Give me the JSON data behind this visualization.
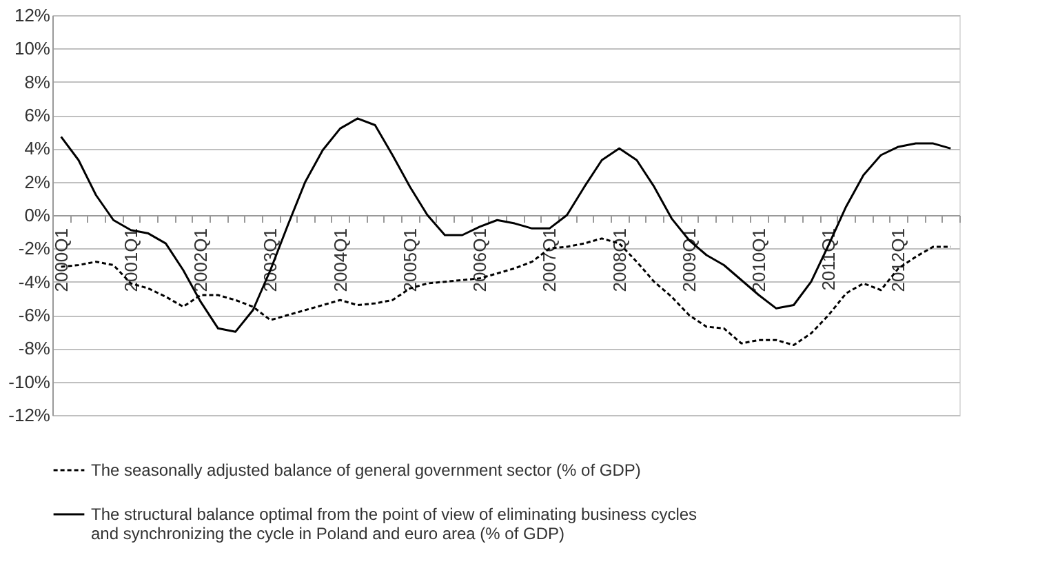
{
  "chart_data": {
    "type": "line",
    "categories": [
      "2000Q1",
      null,
      null,
      null,
      "2001Q1",
      null,
      null,
      null,
      "2002Q1",
      null,
      null,
      null,
      "2003Q1",
      null,
      null,
      null,
      "2004Q1",
      null,
      null,
      null,
      "2005Q1",
      null,
      null,
      null,
      "2006Q1",
      null,
      null,
      null,
      "2007Q1",
      null,
      null,
      null,
      "2008Q1",
      null,
      null,
      null,
      "2009Q1",
      null,
      null,
      null,
      "2010Q1",
      null,
      null,
      null,
      "2011Q1",
      null,
      null,
      null,
      "2012Q1",
      null,
      null,
      null
    ],
    "series": [
      {
        "name": "The seasonally adjusted balance of general government sector (% of GDP)",
        "color": "#000000",
        "line_style": "dashed",
        "values": [
          -3.1,
          -3.0,
          -2.8,
          -3.0,
          -4.1,
          -4.4,
          -4.9,
          -5.5,
          -4.8,
          -4.8,
          -5.1,
          -5.5,
          -6.3,
          -6.0,
          -5.7,
          -5.4,
          -5.1,
          -5.4,
          -5.3,
          -5.1,
          -4.4,
          -4.1,
          -4.0,
          -3.9,
          -3.8,
          -3.5,
          -3.2,
          -2.8,
          -2.0,
          -1.9,
          -1.7,
          -1.4,
          -1.7,
          -2.8,
          -4.0,
          -4.9,
          -6.0,
          -6.7,
          -6.8,
          -7.7,
          -7.5,
          -7.5,
          -7.8,
          -7.1,
          -6.0,
          -4.7,
          -4.1,
          -4.5,
          -3.2,
          -2.5,
          -1.9,
          -1.9
        ]
      },
      {
        "name": "The structural balance optimal from the point of view of eliminating business cycles and synchronizing the cycle in Poland and euro area (% of GDP)",
        "color": "#000000",
        "line_style": "solid",
        "values": [
          4.7,
          3.3,
          1.2,
          -0.3,
          -0.9,
          -1.1,
          -1.7,
          -3.3,
          -5.2,
          -6.8,
          -7.0,
          -5.7,
          -3.3,
          -0.6,
          2.0,
          3.9,
          5.2,
          5.8,
          5.4,
          3.6,
          1.7,
          0.0,
          -1.2,
          -1.2,
          -0.7,
          -0.3,
          -0.5,
          -0.8,
          -0.8,
          0.0,
          1.7,
          3.3,
          4.0,
          3.3,
          1.7,
          -0.2,
          -1.5,
          -2.4,
          -3.0,
          -3.9,
          -4.8,
          -5.6,
          -5.4,
          -4.0,
          -1.8,
          0.5,
          2.4,
          3.6,
          4.1,
          4.3,
          4.3,
          4.0
        ]
      }
    ],
    "ylim": [
      -12,
      12
    ],
    "yticks": [
      {
        "value": -12,
        "label": "-12%"
      },
      {
        "value": -10,
        "label": "-10%"
      },
      {
        "value": -8,
        "label": "-8%"
      },
      {
        "value": -6,
        "label": "-6%"
      },
      {
        "value": -4,
        "label": "-4%"
      },
      {
        "value": -2,
        "label": "-2%"
      },
      {
        "value": 0,
        "label": "0%"
      },
      {
        "value": 2,
        "label": "2%"
      },
      {
        "value": 4,
        "label": "4%"
      },
      {
        "value": 6,
        "label": "6%"
      },
      {
        "value": 8,
        "label": "8%"
      },
      {
        "value": 10,
        "label": "10%"
      },
      {
        "value": 12,
        "label": "12%"
      }
    ],
    "grid": "y",
    "legend": "bottom"
  }
}
